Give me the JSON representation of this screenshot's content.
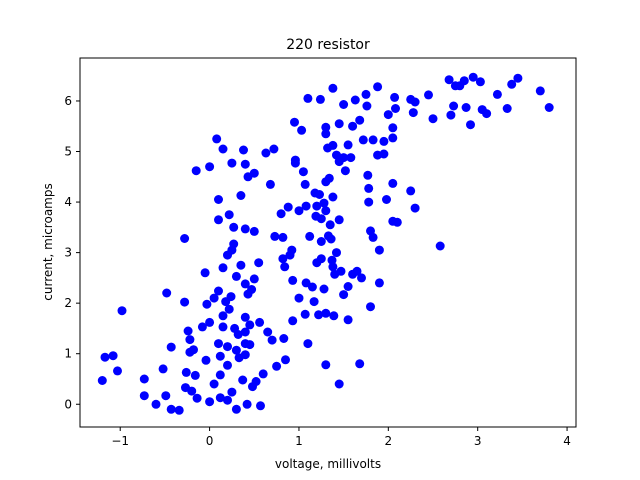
{
  "chart_data": {
    "type": "scatter",
    "title": "220 resistor",
    "xlabel": "voltage, millivolts",
    "ylabel": "current, microamps",
    "xlim": [
      -1.45,
      4.1
    ],
    "ylim": [
      -0.45,
      6.85
    ],
    "xticks": [
      -1,
      0,
      1,
      2,
      3,
      4
    ],
    "yticks": [
      0,
      1,
      2,
      3,
      4,
      5,
      6
    ],
    "grid": false,
    "marker_color": "#0000ff",
    "series": [
      {
        "points": [
          [
            -1.2,
            0.47
          ],
          [
            -1.17,
            0.93
          ],
          [
            -1.08,
            0.96
          ],
          [
            -1.03,
            0.66
          ],
          [
            -0.98,
            1.85
          ],
          [
            -0.73,
            0.5
          ],
          [
            -0.73,
            0.17
          ],
          [
            -0.6,
            0.0
          ],
          [
            -0.52,
            0.7
          ],
          [
            -0.49,
            0.17
          ],
          [
            -0.48,
            2.2
          ],
          [
            -0.43,
            1.13
          ],
          [
            -0.43,
            -0.1
          ],
          [
            -0.34,
            -0.12
          ],
          [
            -0.28,
            3.28
          ],
          [
            -0.28,
            2.02
          ],
          [
            -0.27,
            0.33
          ],
          [
            -0.26,
            0.63
          ],
          [
            -0.24,
            1.45
          ],
          [
            -0.22,
            1.28
          ],
          [
            -0.22,
            1.03
          ],
          [
            -0.2,
            0.26
          ],
          [
            -0.18,
            1.08
          ],
          [
            -0.16,
            0.57
          ],
          [
            -0.14,
            0.12
          ],
          [
            -0.15,
            4.62
          ],
          [
            -0.08,
            1.53
          ],
          [
            -0.05,
            2.6
          ],
          [
            -0.04,
            0.87
          ],
          [
            -0.03,
            1.98
          ],
          [
            0.0,
            4.7
          ],
          [
            0.0,
            1.62
          ],
          [
            0.0,
            0.05
          ],
          [
            0.05,
            0.4
          ],
          [
            0.05,
            2.1
          ],
          [
            0.08,
            5.25
          ],
          [
            0.1,
            4.05
          ],
          [
            0.1,
            3.65
          ],
          [
            0.1,
            2.24
          ],
          [
            0.1,
            1.2
          ],
          [
            0.12,
            0.95
          ],
          [
            0.12,
            0.58
          ],
          [
            0.12,
            0.13
          ],
          [
            0.15,
            5.05
          ],
          [
            0.15,
            2.7
          ],
          [
            0.15,
            1.75
          ],
          [
            0.15,
            1.53
          ],
          [
            0.18,
            2.03
          ],
          [
            0.2,
            2.95
          ],
          [
            0.2,
            1.14
          ],
          [
            0.2,
            0.77
          ],
          [
            0.2,
            0.08
          ],
          [
            0.22,
            3.75
          ],
          [
            0.22,
            1.88
          ],
          [
            0.24,
            2.13
          ],
          [
            0.25,
            4.77
          ],
          [
            0.25,
            3.05
          ],
          [
            0.25,
            0.24
          ],
          [
            0.27,
            3.5
          ],
          [
            0.27,
            3.17
          ],
          [
            0.28,
            1.5
          ],
          [
            0.3,
            2.53
          ],
          [
            0.3,
            1.07
          ],
          [
            0.3,
            -0.1
          ],
          [
            0.32,
            1.38
          ],
          [
            0.33,
            0.92
          ],
          [
            0.35,
            4.13
          ],
          [
            0.35,
            2.75
          ],
          [
            0.37,
            0.48
          ],
          [
            0.38,
            5.03
          ],
          [
            0.4,
            4.75
          ],
          [
            0.4,
            3.47
          ],
          [
            0.4,
            2.38
          ],
          [
            0.4,
            1.72
          ],
          [
            0.4,
            1.43
          ],
          [
            0.4,
            1.2
          ],
          [
            0.4,
            0.98
          ],
          [
            0.42,
            0.0
          ],
          [
            0.43,
            4.5
          ],
          [
            0.43,
            2.18
          ],
          [
            0.45,
            1.57
          ],
          [
            0.45,
            1.18
          ],
          [
            0.47,
            2.27
          ],
          [
            0.48,
            0.35
          ],
          [
            0.5,
            4.57
          ],
          [
            0.5,
            3.42
          ],
          [
            0.5,
            2.48
          ],
          [
            0.52,
            0.45
          ],
          [
            0.55,
            2.8
          ],
          [
            0.56,
            1.62
          ],
          [
            0.57,
            -0.03
          ],
          [
            0.6,
            0.6
          ],
          [
            0.63,
            4.97
          ],
          [
            0.65,
            1.43
          ],
          [
            0.68,
            4.35
          ],
          [
            0.7,
            1.27
          ],
          [
            0.72,
            5.05
          ],
          [
            0.73,
            3.32
          ],
          [
            0.75,
            0.75
          ],
          [
            0.8,
            3.77
          ],
          [
            0.82,
            3.3
          ],
          [
            0.82,
            2.88
          ],
          [
            0.83,
            1.3
          ],
          [
            0.84,
            2.72
          ],
          [
            0.85,
            0.88
          ],
          [
            0.88,
            3.9
          ],
          [
            0.9,
            2.95
          ],
          [
            0.92,
            3.05
          ],
          [
            0.93,
            2.45
          ],
          [
            0.93,
            1.65
          ],
          [
            0.95,
            5.58
          ],
          [
            0.96,
            4.83
          ],
          [
            0.96,
            4.77
          ],
          [
            1.0,
            3.83
          ],
          [
            1.0,
            2.1
          ],
          [
            1.03,
            5.42
          ],
          [
            1.05,
            4.6
          ],
          [
            1.07,
            4.35
          ],
          [
            1.07,
            1.78
          ],
          [
            1.08,
            2.4
          ],
          [
            1.08,
            3.92
          ],
          [
            1.1,
            6.05
          ],
          [
            1.1,
            1.2
          ],
          [
            1.12,
            3.32
          ],
          [
            1.15,
            2.32
          ],
          [
            1.17,
            2.03
          ],
          [
            1.18,
            4.18
          ],
          [
            1.19,
            3.72
          ],
          [
            1.2,
            3.92
          ],
          [
            1.2,
            2.8
          ],
          [
            1.22,
            1.77
          ],
          [
            1.23,
            4.15
          ],
          [
            1.24,
            6.03
          ],
          [
            1.25,
            3.67
          ],
          [
            1.25,
            2.88
          ],
          [
            1.25,
            3.22
          ],
          [
            1.28,
            3.98
          ],
          [
            1.28,
            2.28
          ],
          [
            1.3,
            5.35
          ],
          [
            1.3,
            5.48
          ],
          [
            1.3,
            4.4
          ],
          [
            1.3,
            3.83
          ],
          [
            1.3,
            1.8
          ],
          [
            1.3,
            0.78
          ],
          [
            1.32,
            5.07
          ],
          [
            1.33,
            3.33
          ],
          [
            1.34,
            4.47
          ],
          [
            1.35,
            3.55
          ],
          [
            1.36,
            3.27
          ],
          [
            1.37,
            2.85
          ],
          [
            1.38,
            6.25
          ],
          [
            1.38,
            5.12
          ],
          [
            1.38,
            4.1
          ],
          [
            1.38,
            2.72
          ],
          [
            1.39,
            1.75
          ],
          [
            1.4,
            2.57
          ],
          [
            1.42,
            4.93
          ],
          [
            1.42,
            3.0
          ],
          [
            1.45,
            4.8
          ],
          [
            1.45,
            5.55
          ],
          [
            1.45,
            3.65
          ],
          [
            1.45,
            0.4
          ],
          [
            1.47,
            2.63
          ],
          [
            1.5,
            5.93
          ],
          [
            1.5,
            4.88
          ],
          [
            1.5,
            2.17
          ],
          [
            1.52,
            4.62
          ],
          [
            1.55,
            5.13
          ],
          [
            1.55,
            2.33
          ],
          [
            1.55,
            1.67
          ],
          [
            1.58,
            4.88
          ],
          [
            1.6,
            5.5
          ],
          [
            1.6,
            2.57
          ],
          [
            1.63,
            6.02
          ],
          [
            1.65,
            2.63
          ],
          [
            1.68,
            5.62
          ],
          [
            1.68,
            0.8
          ],
          [
            1.7,
            2.5
          ],
          [
            1.72,
            5.23
          ],
          [
            1.75,
            6.13
          ],
          [
            1.76,
            5.9
          ],
          [
            1.77,
            4.53
          ],
          [
            1.78,
            4.27
          ],
          [
            1.78,
            4.0
          ],
          [
            1.8,
            3.43
          ],
          [
            1.8,
            1.93
          ],
          [
            1.83,
            5.23
          ],
          [
            1.83,
            3.3
          ],
          [
            1.88,
            6.28
          ],
          [
            1.88,
            4.93
          ],
          [
            1.9,
            3.05
          ],
          [
            1.9,
            2.4
          ],
          [
            1.95,
            4.95
          ],
          [
            1.95,
            5.2
          ],
          [
            1.98,
            4.05
          ],
          [
            2.0,
            5.73
          ],
          [
            2.05,
            5.27
          ],
          [
            2.05,
            5.47
          ],
          [
            2.05,
            3.62
          ],
          [
            2.05,
            4.37
          ],
          [
            2.07,
            6.07
          ],
          [
            2.08,
            5.85
          ],
          [
            2.1,
            3.6
          ],
          [
            2.25,
            6.03
          ],
          [
            2.25,
            4.22
          ],
          [
            2.28,
            5.77
          ],
          [
            2.3,
            3.88
          ],
          [
            2.3,
            5.98
          ],
          [
            2.45,
            6.12
          ],
          [
            2.5,
            5.65
          ],
          [
            2.58,
            3.13
          ],
          [
            2.68,
            6.42
          ],
          [
            2.7,
            5.72
          ],
          [
            2.73,
            5.9
          ],
          [
            2.75,
            6.3
          ],
          [
            2.8,
            6.3
          ],
          [
            2.85,
            6.4
          ],
          [
            2.87,
            5.87
          ],
          [
            2.92,
            5.53
          ],
          [
            2.95,
            6.47
          ],
          [
            3.03,
            6.38
          ],
          [
            3.05,
            5.83
          ],
          [
            3.1,
            5.75
          ],
          [
            3.22,
            6.13
          ],
          [
            3.33,
            5.85
          ],
          [
            3.38,
            6.33
          ],
          [
            3.45,
            6.45
          ],
          [
            3.7,
            6.2
          ],
          [
            3.8,
            5.87
          ]
        ]
      }
    ]
  }
}
